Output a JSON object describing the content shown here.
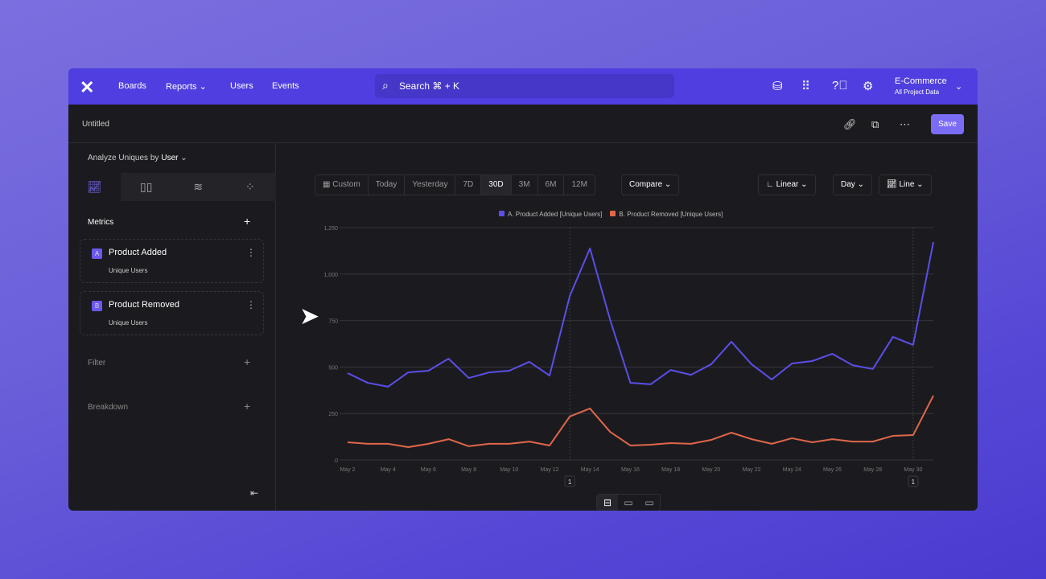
{
  "nav": {
    "items": [
      "Boards",
      "Reports",
      "Users",
      "Events"
    ],
    "search": "Search  ⌘ + K",
    "project": "E-Commerce",
    "project_sub": "All Project Data"
  },
  "header": {
    "title": "Untitled",
    "save": "Save"
  },
  "sidebar": {
    "analyze_label": "Analyze Uniques by",
    "analyze_value": "User",
    "metrics_label": "Metrics",
    "metrics": [
      {
        "badge": "A",
        "name": "Product Added",
        "sub": "Unique Users"
      },
      {
        "badge": "B",
        "name": "Product Removed",
        "sub": "Unique Users"
      }
    ],
    "filter_label": "Filter",
    "breakdown_label": "Breakdown"
  },
  "toolbar": {
    "custom": "Custom",
    "ranges": [
      "Today",
      "Yesterday",
      "7D",
      "30D",
      "3M",
      "6M",
      "12M"
    ],
    "selected": "30D",
    "compare": "Compare",
    "scale": "Linear",
    "interval": "Day",
    "chart_type": "Line"
  },
  "chart_data": {
    "type": "line",
    "ylim": [
      0,
      1250
    ],
    "yticks": [
      "0",
      "250",
      "500",
      "750",
      "1,000",
      "1,250"
    ],
    "grid": true,
    "legend": "top-center",
    "x": [
      "May 2",
      "May 3",
      "May 4",
      "May 5",
      "May 6",
      "May 7",
      "May 8",
      "May 9",
      "May 10",
      "May 11",
      "May 12",
      "May 13",
      "May 14",
      "May 15",
      "May 16",
      "May 17",
      "May 18",
      "May 19",
      "May 20",
      "May 21",
      "May 22",
      "May 23",
      "May 24",
      "May 25",
      "May 26",
      "May 27",
      "May 28",
      "May 29",
      "May 30",
      "May 31"
    ],
    "xtick_labels": [
      "May 2",
      "May 4",
      "May 6",
      "May 8",
      "May 10",
      "May 12",
      "May 14",
      "May 16",
      "May 18",
      "May 20",
      "May 22",
      "May 24",
      "May 26",
      "May 28",
      "May 30"
    ],
    "series": [
      {
        "name": "A. Product Added [Unique Users]",
        "color": "#5b4ee8",
        "values": [
          467,
          415,
          394,
          471,
          480,
          545,
          441,
          471,
          480,
          528,
          454,
          882,
          1138,
          753,
          415,
          407,
          484,
          458,
          515,
          636,
          515,
          433,
          519,
          532,
          571,
          510,
          489,
          662,
          619,
          1172
        ]
      },
      {
        "name": "B. Product Removed [Unique Users]",
        "color": "#e0664a",
        "values": [
          95,
          87,
          87,
          69,
          87,
          112,
          74,
          87,
          87,
          99,
          78,
          234,
          277,
          151,
          78,
          82,
          91,
          87,
          108,
          147,
          112,
          87,
          117,
          95,
          112,
          99,
          99,
          130,
          134,
          346
        ]
      }
    ],
    "annotations": [
      {
        "x": "May 13",
        "label": "1"
      },
      {
        "x": "May 30",
        "label": "1"
      }
    ]
  }
}
